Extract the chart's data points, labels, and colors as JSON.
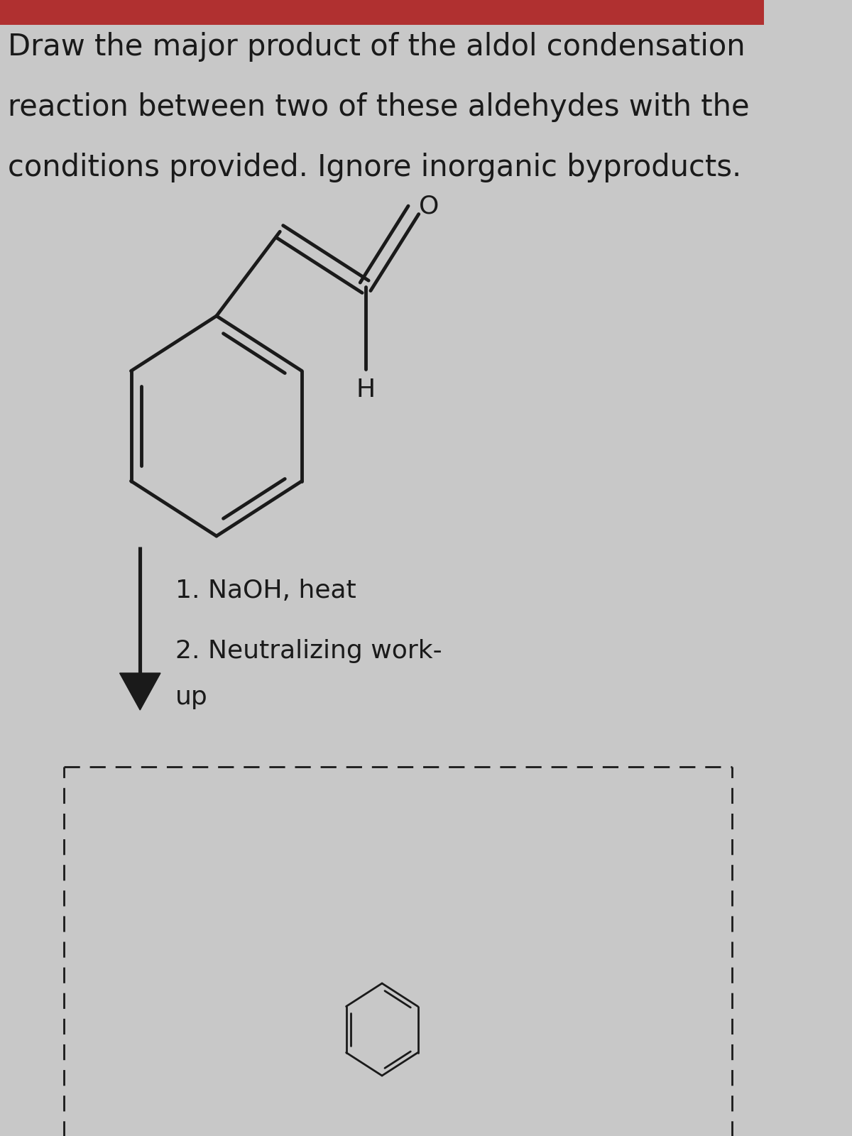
{
  "title_line1": "Draw the major product of the aldol condensation",
  "title_line2": "reaction between two of these aldehydes with the",
  "title_line3": "conditions provided. Ignore inorganic byproducts.",
  "condition1": "1. NaOH, heat",
  "condition2": "2. Neutralizing work-",
  "condition3": "up",
  "label_H": "H",
  "label_O": "O",
  "bg_color": "#c8c8c8",
  "text_color": "#1a1a1a",
  "line_color": "#1a1a1a",
  "title_bg": "#b03030",
  "line_width": 3.5,
  "font_size_title": 30,
  "font_size_label": 26,
  "font_size_condition": 26
}
